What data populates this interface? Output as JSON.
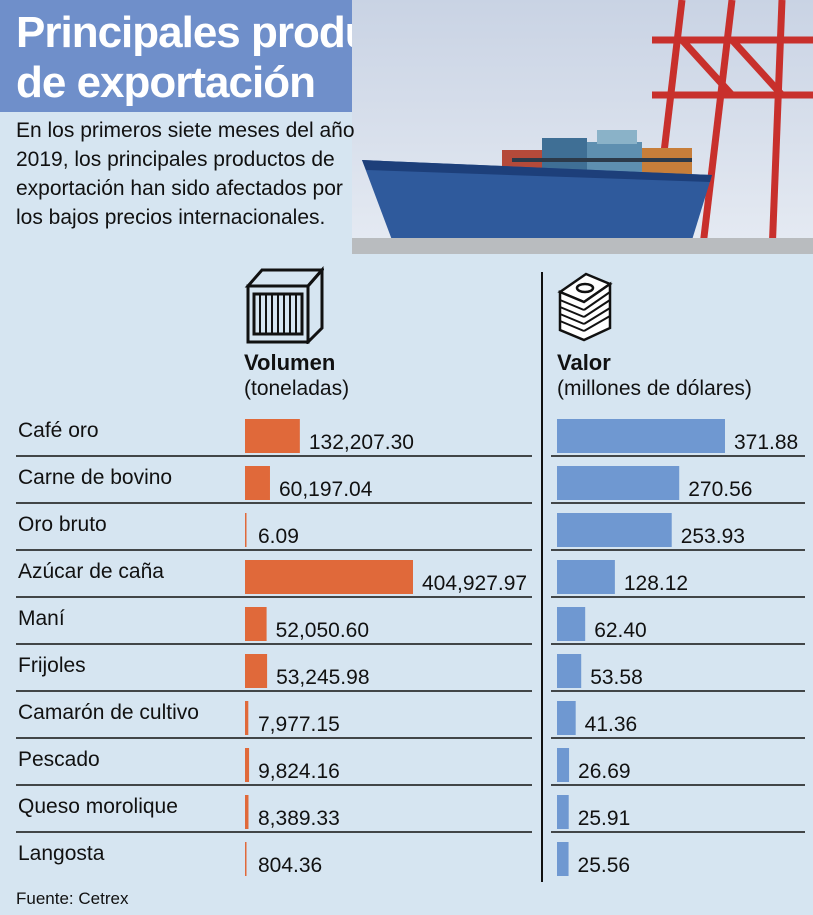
{
  "header": {
    "title_line1": "Principales productos",
    "title_line2": "de exportación",
    "subtitle": "En los primeros siete meses del año 2019, los principales productos de exportación han sido afectados por los bajos precios internacionales."
  },
  "columns": {
    "volume": {
      "title": "Volumen",
      "unit": "(toneladas)",
      "icon": "container-icon",
      "color": "#e0693a"
    },
    "value": {
      "title": "Valor",
      "unit": "(millones de dólares)",
      "icon": "money-stack-icon",
      "color": "#6f98d1"
    }
  },
  "chart_data": {
    "type": "bar",
    "categories": [
      "Café oro",
      "Carne de bovino",
      "Oro bruto",
      "Azúcar de caña",
      "Maní",
      "Frijoles",
      "Camarón de cultivo",
      "Pescado",
      "Queso morolique",
      "Langosta"
    ],
    "series": [
      {
        "name": "Volumen",
        "values": [
          132207.3,
          60197.04,
          6.09,
          404927.97,
          52050.6,
          53245.98,
          7977.15,
          9824.16,
          8389.33,
          804.36
        ],
        "labels": [
          "132,207.30",
          "60,197.04",
          "6.09",
          "404,927.97",
          "52,050.60",
          "53,245.98",
          "7,977.15",
          "9,824.16",
          "8,389.33",
          "804.36"
        ]
      },
      {
        "name": "Valor",
        "values": [
          371.88,
          270.56,
          253.93,
          128.12,
          62.4,
          53.58,
          41.36,
          26.69,
          25.91,
          25.56
        ],
        "labels": [
          "371.88",
          "270.56",
          "253.93",
          "128.12",
          "62.40",
          "53.58",
          "41.36",
          "26.69",
          "25.91",
          "25.56"
        ]
      }
    ]
  },
  "footer": {
    "source": "Fuente: Cetrex"
  }
}
